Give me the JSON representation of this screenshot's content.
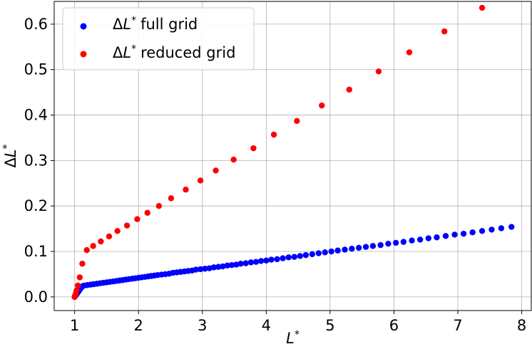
{
  "chart_data": {
    "type": "scatter",
    "xlabel": "L*",
    "ylabel": "ΔL*",
    "xlim": [
      0.68,
      8.15
    ],
    "ylim": [
      -0.03,
      0.65
    ],
    "xticks": [
      1,
      2,
      3,
      4,
      5,
      6,
      7,
      8
    ],
    "yticks": [
      0.0,
      0.1,
      0.2,
      0.3,
      0.4,
      0.5,
      0.6
    ],
    "xtick_labels": [
      "1",
      "2",
      "3",
      "4",
      "5",
      "6",
      "7",
      "8"
    ],
    "ytick_labels": [
      "0.0",
      "0.1",
      "0.2",
      "0.3",
      "0.4",
      "0.5",
      "0.6"
    ],
    "grid": true,
    "legend_position": "top-left",
    "series": [
      {
        "name": "ΔL* full grid",
        "color": "#0000ff",
        "legend_label": "full grid",
        "points": [
          [
            1.0,
            0.0
          ],
          [
            1.01,
            0.002
          ],
          [
            1.02,
            0.004
          ],
          [
            1.03,
            0.006
          ],
          [
            1.04,
            0.008
          ],
          [
            1.05,
            0.01
          ],
          [
            1.06,
            0.012
          ],
          [
            1.07,
            0.014
          ],
          [
            1.08,
            0.016
          ],
          [
            1.09,
            0.018
          ],
          [
            1.1,
            0.02
          ],
          [
            1.11,
            0.022
          ],
          [
            1.12,
            0.023
          ],
          [
            1.13,
            0.024
          ],
          [
            1.15,
            0.025
          ],
          [
            1.2,
            0.026
          ],
          [
            1.25,
            0.027
          ],
          [
            1.3,
            0.028
          ],
          [
            1.35,
            0.029
          ],
          [
            1.4,
            0.03
          ],
          [
            1.45,
            0.031
          ],
          [
            1.5,
            0.032
          ],
          [
            1.55,
            0.033
          ],
          [
            1.6,
            0.034
          ],
          [
            1.65,
            0.035
          ],
          [
            1.7,
            0.036
          ],
          [
            1.75,
            0.037
          ],
          [
            1.8,
            0.038
          ],
          [
            1.85,
            0.039
          ],
          [
            1.9,
            0.04
          ],
          [
            1.95,
            0.041
          ],
          [
            2.0,
            0.042
          ],
          [
            2.05,
            0.043
          ],
          [
            2.1,
            0.044
          ],
          [
            2.15,
            0.045
          ],
          [
            2.2,
            0.046
          ],
          [
            2.25,
            0.047
          ],
          [
            2.3,
            0.048
          ],
          [
            2.36,
            0.049
          ],
          [
            2.42,
            0.05
          ],
          [
            2.48,
            0.051
          ],
          [
            2.54,
            0.053
          ],
          [
            2.6,
            0.054
          ],
          [
            2.66,
            0.055
          ],
          [
            2.72,
            0.056
          ],
          [
            2.78,
            0.057
          ],
          [
            2.84,
            0.058
          ],
          [
            2.9,
            0.06
          ],
          [
            2.97,
            0.061
          ],
          [
            3.04,
            0.062
          ],
          [
            3.11,
            0.063
          ],
          [
            3.18,
            0.065
          ],
          [
            3.25,
            0.066
          ],
          [
            3.32,
            0.067
          ],
          [
            3.39,
            0.069
          ],
          [
            3.46,
            0.07
          ],
          [
            3.53,
            0.071
          ],
          [
            3.6,
            0.073
          ],
          [
            3.68,
            0.074
          ],
          [
            3.76,
            0.076
          ],
          [
            3.84,
            0.077
          ],
          [
            3.92,
            0.079
          ],
          [
            4.0,
            0.08
          ],
          [
            4.08,
            0.082
          ],
          [
            4.17,
            0.083
          ],
          [
            4.26,
            0.085
          ],
          [
            4.35,
            0.087
          ],
          [
            4.44,
            0.088
          ],
          [
            4.53,
            0.09
          ],
          [
            4.62,
            0.092
          ],
          [
            4.72,
            0.094
          ],
          [
            4.82,
            0.096
          ],
          [
            4.92,
            0.098
          ],
          [
            5.02,
            0.1
          ],
          [
            5.12,
            0.102
          ],
          [
            5.23,
            0.104
          ],
          [
            5.34,
            0.106
          ],
          [
            5.45,
            0.108
          ],
          [
            5.56,
            0.11
          ],
          [
            5.67,
            0.112
          ],
          [
            5.79,
            0.114
          ],
          [
            5.91,
            0.117
          ],
          [
            6.03,
            0.119
          ],
          [
            6.15,
            0.121
          ],
          [
            6.28,
            0.124
          ],
          [
            6.41,
            0.126
          ],
          [
            6.54,
            0.129
          ],
          [
            6.67,
            0.131
          ],
          [
            6.81,
            0.134
          ],
          [
            6.95,
            0.137
          ],
          [
            7.09,
            0.139
          ],
          [
            7.23,
            0.142
          ],
          [
            7.38,
            0.145
          ],
          [
            7.53,
            0.148
          ],
          [
            7.68,
            0.151
          ],
          [
            7.84,
            0.154
          ]
        ]
      },
      {
        "name": "ΔL* reduced grid",
        "color": "#ff0000",
        "legend_label": "reduced grid",
        "points": [
          [
            1.0,
            0.0
          ],
          [
            1.01,
            0.004
          ],
          [
            1.02,
            0.008
          ],
          [
            1.03,
            0.014
          ],
          [
            1.05,
            0.025
          ],
          [
            1.08,
            0.043
          ],
          [
            1.12,
            0.073
          ],
          [
            1.19,
            0.103
          ],
          [
            1.29,
            0.112
          ],
          [
            1.41,
            0.122
          ],
          [
            1.54,
            0.133
          ],
          [
            1.67,
            0.145
          ],
          [
            1.82,
            0.157
          ],
          [
            1.98,
            0.171
          ],
          [
            2.14,
            0.185
          ],
          [
            2.32,
            0.2
          ],
          [
            2.51,
            0.217
          ],
          [
            2.74,
            0.236
          ],
          [
            2.97,
            0.256
          ],
          [
            3.21,
            0.278
          ],
          [
            3.49,
            0.302
          ],
          [
            3.8,
            0.327
          ],
          [
            4.12,
            0.357
          ],
          [
            4.48,
            0.387
          ],
          [
            4.87,
            0.421
          ],
          [
            5.3,
            0.456
          ],
          [
            5.76,
            0.496
          ],
          [
            6.24,
            0.538
          ],
          [
            6.79,
            0.584
          ],
          [
            7.38,
            0.636
          ]
        ]
      }
    ]
  }
}
